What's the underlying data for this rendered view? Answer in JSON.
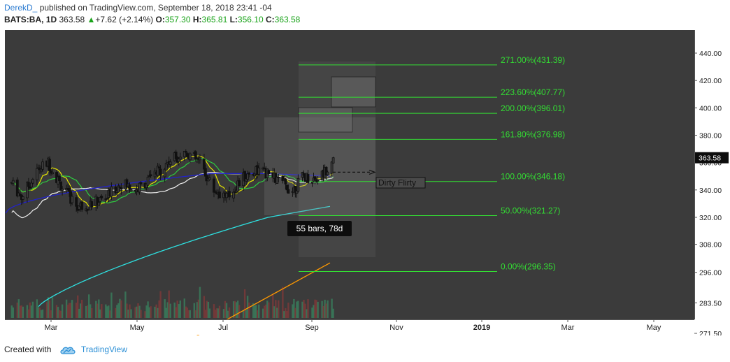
{
  "header": {
    "author": "DerekD_",
    "published": "published on TradingView.com, September 18, 2018 23:41 -04",
    "symbol": "BATS:BA, 1D",
    "last": "363.58",
    "change": "+7.62 (+2.14%)",
    "o_label": "O:",
    "o_value": "357.30",
    "h_label": "H:",
    "h_value": "365.81",
    "l_label": "L:",
    "l_value": "356.10",
    "c_label": "C:",
    "c_value": "363.58"
  },
  "footer": {
    "created_with": "Created with",
    "brand": "TradingView"
  },
  "colors": {
    "background": "#3b3b3b",
    "axis_bg": "#ffffff",
    "fib": "#33dd33",
    "ma_yellow": "#e6e600",
    "ma_green": "#2ecc40",
    "ma_white": "#f0f0f0",
    "ma_blue": "#2222cc",
    "ma_cyan": "#2ee0e0",
    "ma_orange": "#ff9900",
    "up": "#000000",
    "down": "#000000",
    "vol_up": "#3a7a5a",
    "vol_down": "#7a3a3a"
  },
  "chart_data": {
    "type": "candlestick",
    "symbol": "BATS:BA",
    "interval": "1D",
    "x_ticks": [
      "Mar",
      "May",
      "Jul",
      "Sep",
      "Nov",
      "2019",
      "Mar",
      "May"
    ],
    "y_ticks": [
      "440.00",
      "420.00",
      "400.00",
      "380.00",
      "360.00",
      "340.00",
      "320.00",
      "308.00",
      "296.00",
      "283.50",
      "271.50"
    ],
    "last_price_label": "363.58",
    "price_anchors_approx": [
      [
        "2018-02-01",
        345
      ],
      [
        "2018-02-08",
        335
      ],
      [
        "2018-02-20",
        355
      ],
      [
        "2018-02-27",
        360
      ],
      [
        "2018-03-10",
        340
      ],
      [
        "2018-03-20",
        328
      ],
      [
        "2018-03-30",
        330
      ],
      [
        "2018-04-10",
        335
      ],
      [
        "2018-04-20",
        345
      ],
      [
        "2018-05-01",
        340
      ],
      [
        "2018-05-15",
        352
      ],
      [
        "2018-05-25",
        362
      ],
      [
        "2018-06-05",
        368
      ],
      [
        "2018-06-15",
        360
      ],
      [
        "2018-06-25",
        340
      ],
      [
        "2018-07-05",
        335
      ],
      [
        "2018-07-15",
        348
      ],
      [
        "2018-07-25",
        355
      ],
      [
        "2018-08-05",
        350
      ],
      [
        "2018-08-12",
        345
      ],
      [
        "2018-08-20",
        340
      ],
      [
        "2018-08-28",
        350
      ],
      [
        "2018-09-05",
        348
      ],
      [
        "2018-09-11",
        352
      ],
      [
        "2018-09-18",
        363.58
      ]
    ],
    "fib_levels": [
      {
        "label": "0.00%(296.35)",
        "price": 296.35
      },
      {
        "label": "50.00%(321.27)",
        "price": 321.27
      },
      {
        "label": "100.00%(346.18)",
        "price": 346.18
      },
      {
        "label": "161.80%(376.98)",
        "price": 376.98
      },
      {
        "label": "200.00%(396.01)",
        "price": 396.01
      },
      {
        "label": "223.60%(407.77)",
        "price": 407.77
      },
      {
        "label": "271.00%(431.39)",
        "price": 431.39
      }
    ],
    "annotations": {
      "range_label": "55 bars, 78d",
      "note_label": "Dirty Flirty"
    }
  }
}
